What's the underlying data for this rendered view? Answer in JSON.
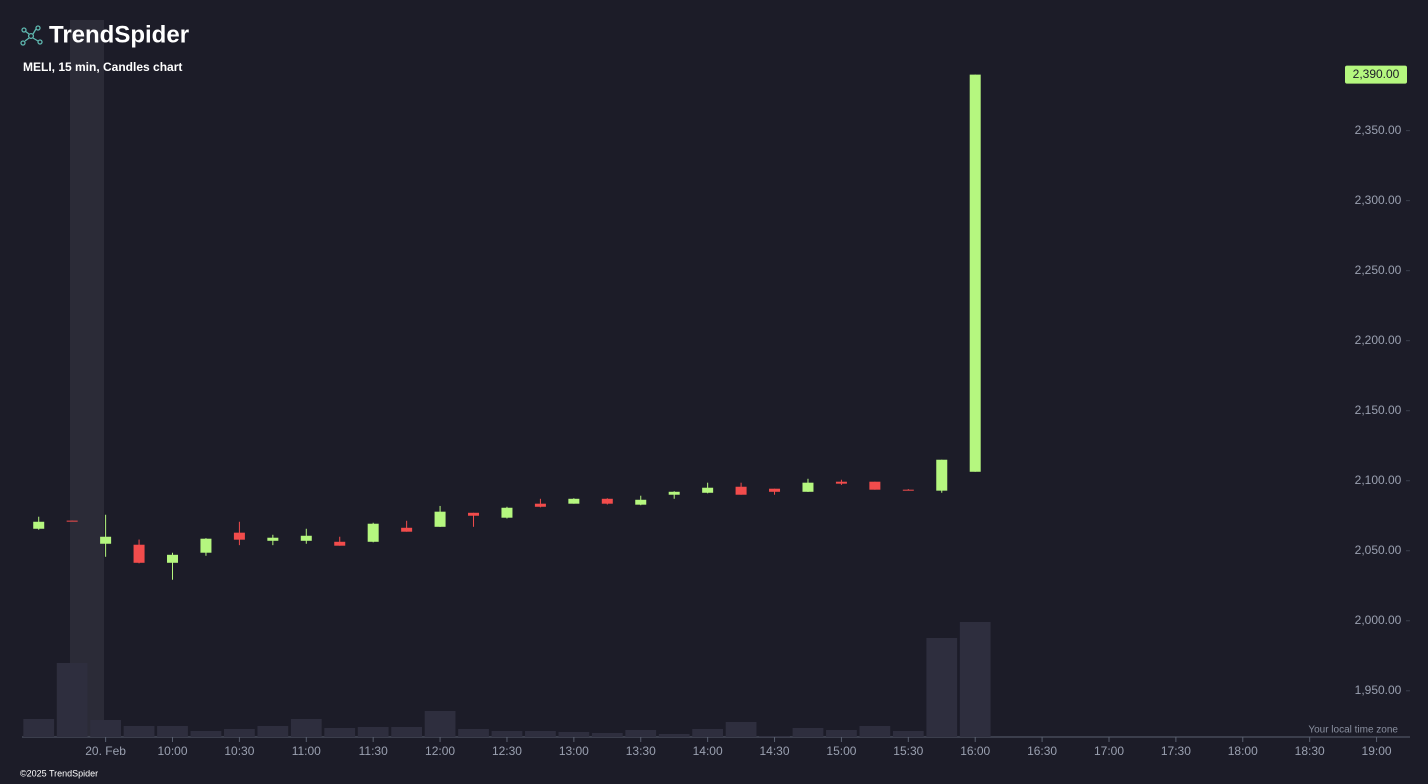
{
  "chart_data": {
    "type": "candlestick",
    "brand": "TrendSpider",
    "title": "MELI, 15 min, Candles chart",
    "x": [
      0,
      1,
      2,
      3,
      4,
      5,
      6,
      7,
      8,
      9,
      10,
      11,
      12,
      13,
      14,
      15,
      16,
      17,
      18,
      19,
      20,
      21,
      22,
      23,
      24,
      25,
      26,
      27,
      28
    ],
    "open": [
      2065.7,
      2071.5,
      2055.0,
      2054.3,
      2041.4,
      2048.6,
      2062.9,
      2057.1,
      2057.1,
      2056.4,
      2056.4,
      2066.4,
      2067.1,
      2077.1,
      2073.6,
      2083.6,
      2083.6,
      2087.1,
      2082.9,
      2090.0,
      2091.4,
      2095.7,
      2094.3,
      2092.1,
      2099.3,
      2099.3,
      2093.6,
      2092.9,
      2106.4
    ],
    "high": [
      2074.3,
      2071.5,
      2075.7,
      2058.0,
      2048.6,
      2059.0,
      2070.7,
      2061.4,
      2065.7,
      2060.0,
      2070.0,
      2071.4,
      2082.0,
      2077.1,
      2081.4,
      2087.1,
      2087.5,
      2087.5,
      2089.3,
      2092.5,
      2098.6,
      2098.6,
      2094.3,
      2101.4,
      2100.7,
      2099.3,
      2094.0,
      2115.0,
      2390.0
    ],
    "low": [
      2065.0,
      2071.0,
      2045.7,
      2041.0,
      2029.3,
      2046.4,
      2054.0,
      2054.0,
      2055.0,
      2053.6,
      2056.0,
      2063.6,
      2067.0,
      2067.1,
      2073.0,
      2081.0,
      2083.6,
      2083.0,
      2082.5,
      2087.1,
      2091.0,
      2090.0,
      2090.0,
      2092.0,
      2097.0,
      2093.6,
      2093.0,
      2091.4,
      2106.4
    ],
    "close": [
      2070.7,
      2071.0,
      2060.0,
      2041.4,
      2047.1,
      2058.6,
      2057.9,
      2059.3,
      2060.7,
      2053.6,
      2069.3,
      2063.6,
      2077.9,
      2075.0,
      2080.7,
      2081.4,
      2087.1,
      2083.6,
      2086.4,
      2092.1,
      2095.0,
      2090.0,
      2092.1,
      2098.6,
      2097.9,
      2093.6,
      2093.0,
      2115.0,
      2390.0
    ],
    "volume": [
      18,
      74,
      17,
      11,
      11,
      6,
      8,
      11,
      18,
      9,
      10,
      10,
      26,
      8,
      6,
      6,
      5,
      4,
      7,
      3,
      8,
      15,
      1,
      9,
      7,
      11,
      6,
      99,
      115
    ],
    "up_color": "#b5f77f",
    "down_color": "#f24c4c",
    "volume_color": "#2e2e3e",
    "xlim": [
      -0.5,
      41
    ],
    "xticks": [
      {
        "value": 2,
        "label": "20. Feb"
      },
      {
        "value": 4,
        "label": "10:00"
      },
      {
        "value": 6,
        "label": "10:30"
      },
      {
        "value": 8,
        "label": "11:00"
      },
      {
        "value": 10,
        "label": "11:30"
      },
      {
        "value": 12,
        "label": "12:00"
      },
      {
        "value": 14,
        "label": "12:30"
      },
      {
        "value": 16,
        "label": "13:00"
      },
      {
        "value": 18,
        "label": "13:30"
      },
      {
        "value": 20,
        "label": "14:00"
      },
      {
        "value": 22,
        "label": "14:30"
      },
      {
        "value": 24,
        "label": "15:00"
      },
      {
        "value": 26,
        "label": "15:30"
      },
      {
        "value": 28,
        "label": "16:00"
      },
      {
        "value": 30,
        "label": "16:30"
      },
      {
        "value": 32,
        "label": "17:00"
      },
      {
        "value": 34,
        "label": "17:30"
      },
      {
        "value": 36,
        "label": "18:00"
      },
      {
        "value": 38,
        "label": "18:30"
      },
      {
        "value": 40,
        "label": "19:00"
      }
    ],
    "ylim": [
      1917,
      2429
    ],
    "yticks": [
      {
        "value": 1950,
        "label": "1,950.00"
      },
      {
        "value": 2000,
        "label": "2,000.00"
      },
      {
        "value": 2050,
        "label": "2,050.00"
      },
      {
        "value": 2100,
        "label": "2,100.00"
      },
      {
        "value": 2150,
        "label": "2,150.00"
      },
      {
        "value": 2200,
        "label": "2,200.00"
      },
      {
        "value": 2250,
        "label": "2,250.00"
      },
      {
        "value": 2300,
        "label": "2,300.00"
      },
      {
        "value": 2350,
        "label": "2,350.00"
      }
    ],
    "last_price": {
      "value": 2390,
      "label": "2,390.00"
    },
    "timezone_note": "Your local time zone",
    "copyright": "©2025 TrendSpider"
  }
}
